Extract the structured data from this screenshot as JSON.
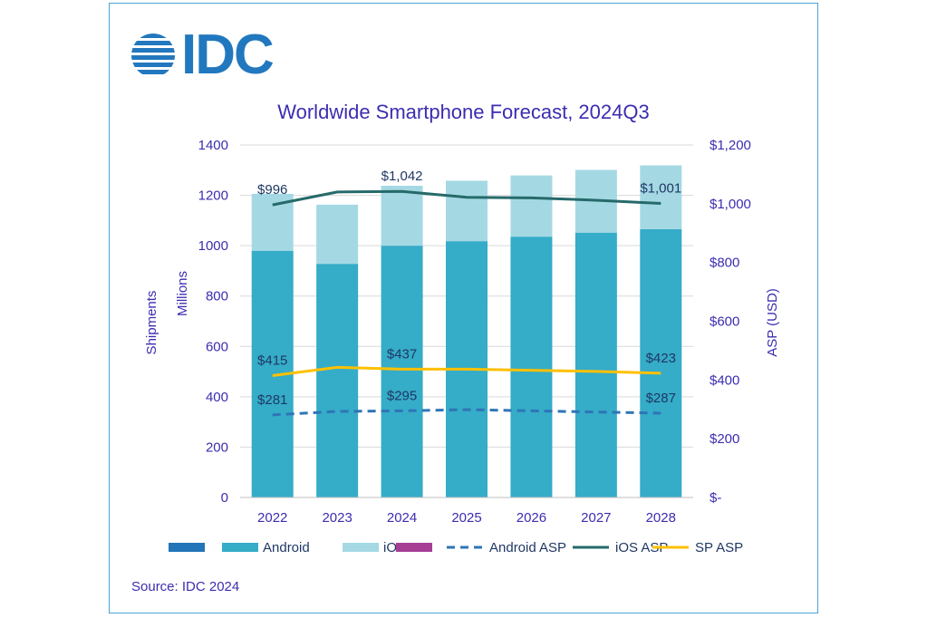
{
  "logo": {
    "text": "IDC"
  },
  "source": "Source: IDC 2024",
  "chart_data": {
    "type": "bar",
    "title": "Worldwide Smartphone Forecast, 2024Q3",
    "categories": [
      "2022",
      "2023",
      "2024",
      "2025",
      "2026",
      "2027",
      "2028"
    ],
    "stacked": true,
    "y_left": {
      "label": "Shipments",
      "sublabel": "Millions",
      "ylim": [
        0,
        1400
      ],
      "ticks": [
        "0",
        "200",
        "400",
        "600",
        "800",
        "1000",
        "1200",
        "1400"
      ]
    },
    "y_right": {
      "label": "ASP (USD)",
      "ylim": [
        0,
        1200
      ],
      "ticks": [
        "$-",
        "$200",
        "$400",
        "$600",
        "$800",
        "$1,000",
        "$1,200"
      ]
    },
    "series": [
      {
        "name": "Android",
        "axis": "left",
        "kind": "bar",
        "color": "#35acc8",
        "values": [
          980,
          928,
          1000,
          1018,
          1036,
          1052,
          1066
        ]
      },
      {
        "name": "iOS",
        "axis": "left",
        "kind": "bar",
        "color": "#a4d9e4",
        "values": [
          226,
          235,
          238,
          240,
          243,
          249,
          253
        ]
      },
      {
        "name": "Android ASP",
        "axis": "right",
        "kind": "line",
        "style": "dashed",
        "color": "#2e75b6",
        "values": [
          281,
          293,
          295,
          299,
          295,
          291,
          287
        ]
      },
      {
        "name": "iOS ASP",
        "axis": "right",
        "kind": "line",
        "style": "solid",
        "color": "#266a6a",
        "values": [
          996,
          1040,
          1042,
          1022,
          1020,
          1012,
          1001
        ]
      },
      {
        "name": "SP ASP",
        "axis": "right",
        "kind": "line",
        "style": "solid",
        "color": "#ffc000",
        "values": [
          415,
          443,
          437,
          437,
          433,
          429,
          423
        ]
      }
    ],
    "data_labels": [
      {
        "series": "iOS ASP",
        "index": 0,
        "text": "$996"
      },
      {
        "series": "iOS ASP",
        "index": 2,
        "text": "$1,042"
      },
      {
        "series": "iOS ASP",
        "index": 6,
        "text": "$1,001"
      },
      {
        "series": "SP ASP",
        "index": 0,
        "text": "$415"
      },
      {
        "series": "SP ASP",
        "index": 2,
        "text": "$437"
      },
      {
        "series": "SP ASP",
        "index": 6,
        "text": "$423"
      },
      {
        "series": "Android ASP",
        "index": 0,
        "text": "$281"
      },
      {
        "series": "Android ASP",
        "index": 2,
        "text": "$295"
      },
      {
        "series": "Android ASP",
        "index": 6,
        "text": "$287"
      }
    ],
    "legend": {
      "placement": "bottom",
      "items": [
        {
          "name": "",
          "kind": "rect",
          "color": "#2275b8"
        },
        {
          "name": "Android",
          "kind": "rect",
          "color": "#35acc8"
        },
        {
          "name": "iOS",
          "kind": "rect",
          "color": "#a4d9e4"
        },
        {
          "name": "",
          "kind": "rect",
          "color": "#a63e96"
        },
        {
          "name": "Android ASP",
          "kind": "dash",
          "color": "#2e75b6"
        },
        {
          "name": "iOS ASP",
          "kind": "line",
          "color": "#266a6a"
        },
        {
          "name": "SP ASP",
          "kind": "line",
          "color": "#ffc000"
        }
      ]
    },
    "grid": true
  }
}
